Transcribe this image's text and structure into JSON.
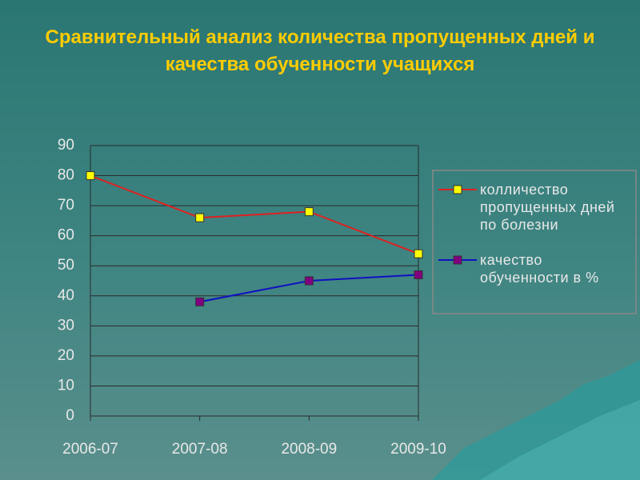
{
  "chart_data": {
    "type": "line",
    "title": "Сравнительный анализ количества пропущенных дней и качества обученности учащихся",
    "categories": [
      "2006-07",
      "2007-08",
      "2008-09",
      "2009-10"
    ],
    "series": [
      {
        "name": "колличество пропущенных дней по болезни",
        "color": "#e02020",
        "marker_color": "#ffff00",
        "values": [
          80,
          66,
          68,
          54
        ]
      },
      {
        "name": "качество обученности в %",
        "color": "#1010c0",
        "marker_color": "#800080",
        "values": [
          null,
          38,
          45,
          47
        ]
      }
    ],
    "ylim": [
      0,
      90
    ],
    "yticks": [
      0,
      10,
      20,
      30,
      40,
      50,
      60,
      70,
      80,
      90
    ],
    "grid": true,
    "legend": "right"
  }
}
